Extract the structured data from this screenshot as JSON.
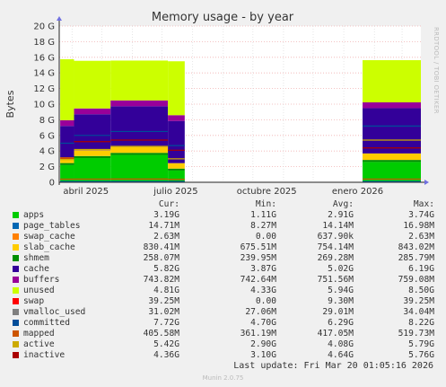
{
  "title": "Memory usage - by year",
  "side_label": "RRDTOOL / TOBI OETIKER",
  "chart_data": {
    "type": "area",
    "title": "Memory usage - by year",
    "ylabel": "Bytes",
    "ylim": [
      0,
      20
    ],
    "y_ticks": [
      "0",
      "2 G",
      "4 G",
      "6 G",
      "8 G",
      "10 G",
      "12 G",
      "14 G",
      "16 G",
      "18 G",
      "20 G"
    ],
    "x_ticks": [
      "abril 2025",
      "julio 2025",
      "octubre 2025",
      "enero 2026"
    ],
    "grid": true,
    "segments": [
      {
        "x": [
          "2025-03-20",
          "2025-04-03"
        ],
        "apps": 2.2,
        "shmem": 0.26,
        "slab": 0.75,
        "cache": 4.0,
        "buffers": 0.74,
        "unused": 7.8,
        "committed": 5.0,
        "mapped": 0.4,
        "active": 2.9,
        "inactive": 3.1
      },
      {
        "x": [
          "2025-04-03",
          "2025-05-10"
        ],
        "apps": 3.1,
        "shmem": 0.26,
        "slab": 0.75,
        "cache": 4.6,
        "buffers": 0.74,
        "unused": 6.1,
        "committed": 6.0,
        "mapped": 0.41,
        "active": 4.2,
        "inactive": 5.2
      },
      {
        "x": [
          "2025-05-10",
          "2025-07-07"
        ],
        "apps": 3.5,
        "shmem": 0.27,
        "slab": 0.76,
        "cache": 5.2,
        "buffers": 0.75,
        "unused": 5.1,
        "committed": 6.5,
        "mapped": 0.42,
        "active": 4.6,
        "inactive": 5.4
      },
      {
        "x": [
          "2025-07-07",
          "2025-07-24"
        ],
        "apps": 1.5,
        "shmem": 0.25,
        "slab": 0.7,
        "cache": 5.4,
        "buffers": 0.74,
        "unused": 6.9,
        "committed": 4.7,
        "mapped": 0.37,
        "active": 3.0,
        "inactive": 4.1
      },
      {
        "x": [
          "2026-01-20",
          "2026-03-20"
        ],
        "apps": 2.6,
        "shmem": 0.26,
        "slab": 0.83,
        "cache": 5.8,
        "buffers": 0.74,
        "unused": 5.4,
        "committed": 7.2,
        "mapped": 0.41,
        "active": 5.4,
        "inactive": 4.4
      }
    ],
    "series": [
      {
        "name": "apps",
        "color": "#00cc00",
        "cur": "3.19G",
        "min": "1.11G",
        "avg": "2.91G",
        "max": "3.74G"
      },
      {
        "name": "page_tables",
        "color": "#0066b3",
        "cur": "14.71M",
        "min": "8.27M",
        "avg": "14.14M",
        "max": "16.98M"
      },
      {
        "name": "swap_cache",
        "color": "#ff8000",
        "cur": "2.63M",
        "min": "0.00",
        "avg": "637.90k",
        "max": "2.63M"
      },
      {
        "name": "slab_cache",
        "color": "#ffcc00",
        "cur": "830.41M",
        "min": "675.51M",
        "avg": "754.14M",
        "max": "843.02M"
      },
      {
        "name": "shmem",
        "color": "#008f00",
        "cur": "258.07M",
        "min": "239.95M",
        "avg": "269.28M",
        "max": "285.79M"
      },
      {
        "name": "cache",
        "color": "#330099",
        "cur": "5.82G",
        "min": "3.87G",
        "avg": "5.02G",
        "max": "6.19G"
      },
      {
        "name": "buffers",
        "color": "#990099",
        "cur": "743.82M",
        "min": "742.64M",
        "avg": "751.56M",
        "max": "759.08M"
      },
      {
        "name": "unused",
        "color": "#ccff00",
        "cur": "4.81G",
        "min": "4.33G",
        "avg": "5.94G",
        "max": "8.50G"
      },
      {
        "name": "swap",
        "color": "#ff0000",
        "cur": "39.25M",
        "min": "0.00",
        "avg": "9.30M",
        "max": "39.25M"
      },
      {
        "name": "vmalloc_used",
        "color": "#808080",
        "cur": "31.02M",
        "min": "27.06M",
        "avg": "29.01M",
        "max": "34.04M"
      },
      {
        "name": "committed",
        "color": "#004d99",
        "cur": "7.72G",
        "min": "4.70G",
        "avg": "6.29G",
        "max": "8.22G"
      },
      {
        "name": "mapped",
        "color": "#cc5500",
        "cur": "405.58M",
        "min": "361.19M",
        "avg": "417.05M",
        "max": "519.73M"
      },
      {
        "name": "active",
        "color": "#ccaa00",
        "cur": "5.42G",
        "min": "2.90G",
        "avg": "4.08G",
        "max": "5.79G"
      },
      {
        "name": "inactive",
        "color": "#aa0000",
        "cur": "4.36G",
        "min": "3.10G",
        "avg": "4.64G",
        "max": "5.76G"
      }
    ]
  },
  "legend_header": {
    "cur": "Cur:",
    "min": "Min:",
    "avg": "Avg:",
    "max": "Max:"
  },
  "last_update": "Last update: Fri Mar 20 01:05:16 2026",
  "footer": "Munin 2.0.75"
}
